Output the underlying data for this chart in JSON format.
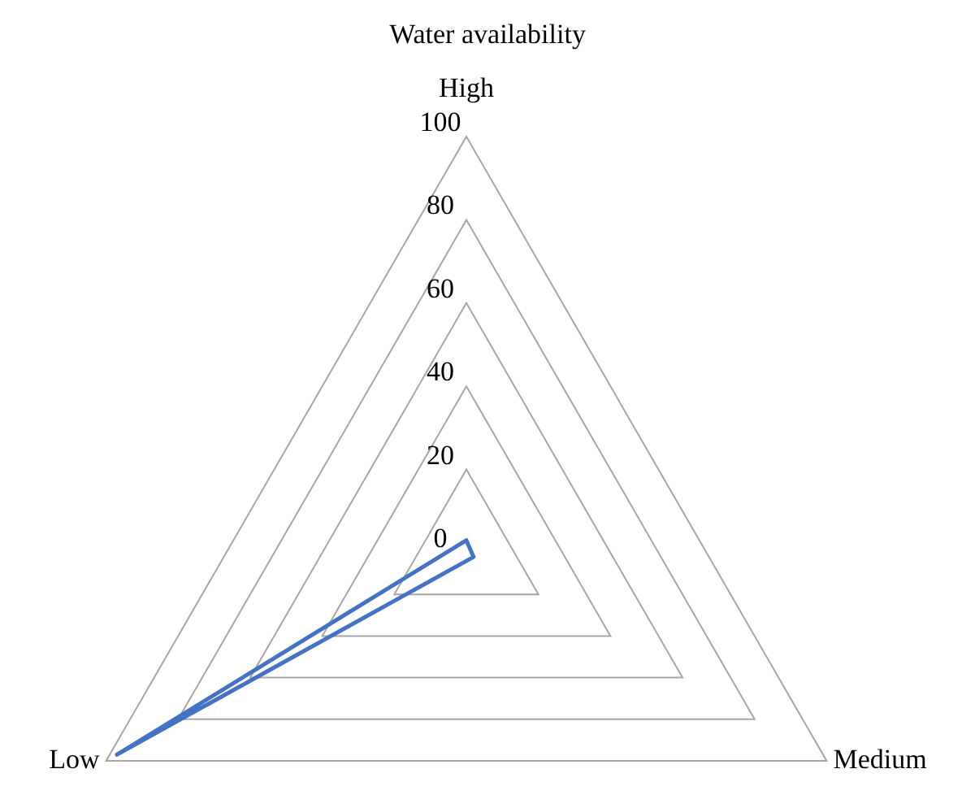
{
  "chart_data": {
    "type": "radar",
    "title": "Water availability",
    "categories": [
      "High",
      "Medium",
      "Low"
    ],
    "series": [
      {
        "color": "#4472c4",
        "values": [
          3,
          2,
          97
        ]
      }
    ],
    "ylim": [
      0,
      100
    ],
    "yticks": [
      0,
      20,
      40,
      60,
      80,
      100
    ],
    "grid": true,
    "legend": false,
    "marker": "none",
    "line_style": "solid"
  }
}
